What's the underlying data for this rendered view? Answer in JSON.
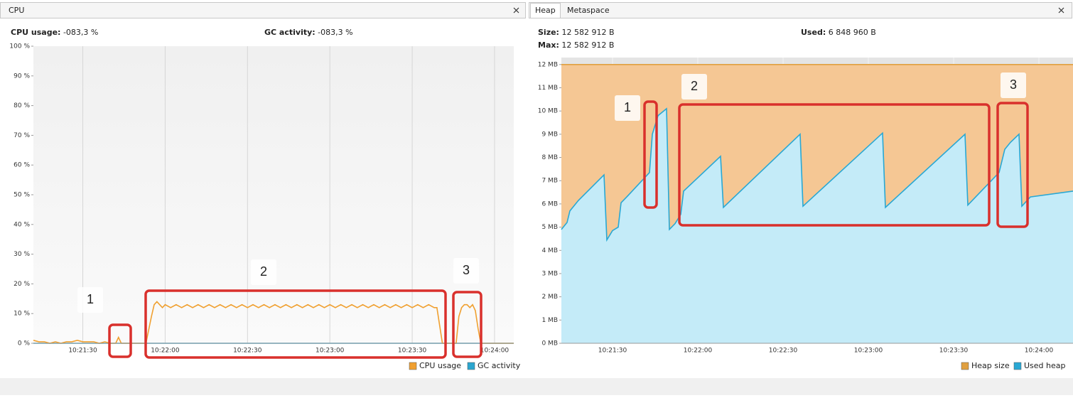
{
  "panels": [
    {
      "tabs": [
        "CPU"
      ],
      "stats": [
        {
          "label": "CPU usage:",
          "value": "-083,3 %"
        },
        {
          "label": "GC activity:",
          "value": "-083,3 %"
        }
      ]
    },
    {
      "tabs": [
        "Heap",
        "Metaspace"
      ],
      "stats": [
        {
          "label": "Size:",
          "value": "12 582 912 B"
        },
        {
          "label": "Used:",
          "value": "6 848 960 B"
        },
        {
          "label": "Max:",
          "value": "12 582 912 B"
        }
      ]
    }
  ],
  "chart_data": [
    {
      "type": "line",
      "grid": "x",
      "x": [
        "10:21:12",
        "10:21:14",
        "10:21:16",
        "10:21:18",
        "10:21:20",
        "10:21:22",
        "10:21:24",
        "10:21:26",
        "10:21:28",
        "10:21:30",
        "10:21:34",
        "10:21:36",
        "10:21:38",
        "10:21:40",
        "10:21:42",
        "10:21:43",
        "10:21:44",
        "10:21:46",
        "10:21:50",
        "10:21:53",
        "10:21:55",
        "10:21:56",
        "10:21:57",
        "10:21:58",
        "10:21:59",
        "10:22:00",
        "10:22:02",
        "10:22:04",
        "10:22:06",
        "10:22:08",
        "10:22:10",
        "10:22:12",
        "10:22:14",
        "10:22:16",
        "10:22:18",
        "10:22:20",
        "10:22:22",
        "10:22:24",
        "10:22:26",
        "10:22:28",
        "10:22:30",
        "10:22:32",
        "10:22:34",
        "10:22:36",
        "10:22:38",
        "10:22:40",
        "10:22:42",
        "10:22:44",
        "10:22:46",
        "10:22:48",
        "10:22:50",
        "10:22:52",
        "10:22:54",
        "10:22:56",
        "10:22:58",
        "10:23:00",
        "10:23:02",
        "10:23:04",
        "10:23:06",
        "10:23:08",
        "10:23:10",
        "10:23:12",
        "10:23:14",
        "10:23:16",
        "10:23:18",
        "10:23:20",
        "10:23:22",
        "10:23:24",
        "10:23:26",
        "10:23:28",
        "10:23:30",
        "10:23:32",
        "10:23:34",
        "10:23:36",
        "10:23:38",
        "10:23:39",
        "10:23:41",
        "10:23:46",
        "10:23:47",
        "10:23:48",
        "10:23:49",
        "10:23:50",
        "10:23:51",
        "10:23:52",
        "10:23:53",
        "10:23:54",
        "10:23:55",
        "10:24:07"
      ],
      "series": [
        {
          "name": "CPU usage",
          "color": "#f0a030",
          "values": [
            1,
            0.5,
            0.5,
            0,
            0.5,
            0,
            0.5,
            0.5,
            1,
            0.5,
            0.5,
            0,
            0.5,
            0,
            0,
            2,
            0,
            0,
            0,
            0,
            9,
            13,
            14,
            13,
            12,
            13,
            12,
            13,
            12,
            13,
            12,
            13,
            12,
            13,
            12,
            13,
            12,
            13,
            12,
            13,
            12,
            13,
            12,
            13,
            12,
            13,
            12,
            13,
            12,
            13,
            12,
            13,
            12,
            13,
            12,
            13,
            12,
            13,
            12,
            13,
            12,
            13,
            12,
            13,
            12,
            13,
            12,
            13,
            12,
            13,
            12,
            13,
            12,
            13,
            12,
            12,
            0,
            0,
            9,
            12,
            13,
            13,
            12,
            13,
            11,
            5,
            0,
            0
          ]
        },
        {
          "name": "GC activity",
          "color": "#2ba6cf",
          "values": [
            0,
            0,
            0,
            0,
            0,
            0,
            0,
            0,
            0,
            0,
            0,
            0,
            0,
            0,
            0,
            0,
            0,
            0,
            0,
            0,
            0,
            0,
            0,
            0,
            0,
            0,
            0,
            0,
            0,
            0,
            0,
            0,
            0,
            0,
            0,
            0,
            0,
            0,
            0,
            0,
            0,
            0,
            0,
            0,
            0,
            0,
            0,
            0,
            0,
            0,
            0,
            0,
            0,
            0,
            0,
            0,
            0,
            0,
            0,
            0,
            0,
            0,
            0,
            0,
            0,
            0,
            0,
            0,
            0,
            0,
            0,
            0,
            0,
            0,
            0,
            0,
            0,
            0,
            0,
            0,
            0,
            0,
            0,
            0,
            0,
            0,
            0,
            0
          ]
        }
      ],
      "xlim": [
        "10:21:12",
        "10:24:07"
      ],
      "xticks": [
        "10:21:30",
        "10:22:00",
        "10:22:30",
        "10:23:00",
        "10:23:30",
        "10:24:00"
      ],
      "ylim": [
        0,
        100
      ],
      "yticks": [
        {
          "value": 0,
          "label": "0 %"
        },
        {
          "value": 10,
          "label": "10 %"
        },
        {
          "value": 20,
          "label": "20 %"
        },
        {
          "value": 30,
          "label": "30 %"
        },
        {
          "value": 40,
          "label": "40 %"
        },
        {
          "value": 50,
          "label": "50 %"
        },
        {
          "value": 60,
          "label": "60 %"
        },
        {
          "value": 70,
          "label": "70 %"
        },
        {
          "value": 80,
          "label": "80 %"
        },
        {
          "value": 90,
          "label": "90 %"
        },
        {
          "value": 100,
          "label": "100 %"
        }
      ],
      "annotations": [
        {
          "label": "1"
        },
        {
          "label": "2"
        },
        {
          "label": "3"
        }
      ]
    },
    {
      "type": "area",
      "grid": "both",
      "x": [
        "10:21:12",
        "10:21:14",
        "10:21:15",
        "10:21:18",
        "10:21:27",
        "10:21:28",
        "10:21:30",
        "10:21:32",
        "10:21:33",
        "10:21:35",
        "10:21:43",
        "10:21:44",
        "10:21:46",
        "10:21:49",
        "10:21:50",
        "10:21:52",
        "10:21:54",
        "10:21:55",
        "10:22:08",
        "10:22:09",
        "10:22:36",
        "10:22:37",
        "10:23:05",
        "10:23:06",
        "10:23:34",
        "10:23:35",
        "10:23:46",
        "10:23:48",
        "10:23:50",
        "10:23:53",
        "10:23:54",
        "10:23:57",
        "10:24:12"
      ],
      "series": [
        {
          "name": "Heap size",
          "color": "#e0a040",
          "fill": "#f5c794",
          "values": [
            12,
            12,
            12,
            12,
            12,
            12,
            12,
            12,
            12,
            12,
            12,
            12,
            12,
            12,
            12,
            12,
            12,
            12,
            12,
            12,
            12,
            12,
            12,
            12,
            12,
            12,
            12,
            12,
            12,
            12,
            12,
            12,
            12
          ]
        },
        {
          "name": "Used heap",
          "color": "#29a8d4",
          "fill": "#c4ebf8",
          "values": [
            4.9,
            5.2,
            5.7,
            6.15,
            7.25,
            4.45,
            4.85,
            5.0,
            6.05,
            6.3,
            7.35,
            9.0,
            9.8,
            10.1,
            4.9,
            5.15,
            5.55,
            6.55,
            8.05,
            5.85,
            9.0,
            5.9,
            9.05,
            5.85,
            9.0,
            5.95,
            7.35,
            8.35,
            8.65,
            9.0,
            5.9,
            6.3,
            6.55
          ]
        }
      ],
      "xlim": [
        "10:21:12",
        "10:24:12"
      ],
      "xticks": [
        "10:21:30",
        "10:22:00",
        "10:22:30",
        "10:23:00",
        "10:23:30",
        "10:24:00"
      ],
      "ylim": [
        0,
        12.3
      ],
      "yticks": [
        {
          "value": 0,
          "label": "0 MB"
        },
        {
          "value": 1,
          "label": "1 MB"
        },
        {
          "value": 2,
          "label": "2 MB"
        },
        {
          "value": 3,
          "label": "3 MB"
        },
        {
          "value": 4,
          "label": "4 MB"
        },
        {
          "value": 5,
          "label": "5 MB"
        },
        {
          "value": 6,
          "label": "6 MB"
        },
        {
          "value": 7,
          "label": "7 MB"
        },
        {
          "value": 8,
          "label": "8 MB"
        },
        {
          "value": 9,
          "label": "9 MB"
        },
        {
          "value": 10,
          "label": "10 MB"
        },
        {
          "value": 11,
          "label": "11 MB"
        },
        {
          "value": 12,
          "label": "12 MB"
        }
      ],
      "annotations": [
        {
          "label": "1"
        },
        {
          "label": "2"
        },
        {
          "label": "3"
        }
      ]
    }
  ]
}
